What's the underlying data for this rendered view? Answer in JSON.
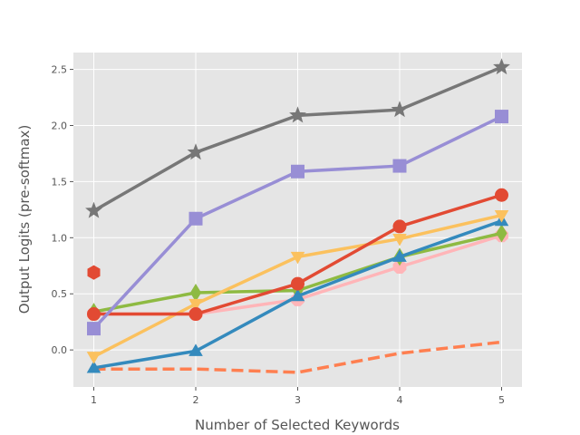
{
  "chart_data": {
    "type": "line",
    "style": "ggplot",
    "title": "",
    "xlabel": "Number of Selected Keywords",
    "ylabel": "Output Logits (pre-softmax)",
    "xlim": [
      0.8,
      5.2
    ],
    "ylim": [
      -0.33,
      2.65
    ],
    "x_ticks": [
      1,
      2,
      3,
      4,
      5
    ],
    "y_ticks": [
      0.0,
      0.5,
      1.0,
      1.5,
      2.0,
      2.5
    ],
    "y_tick_labels": [
      "0.0",
      "0.5",
      "1.0",
      "1.5",
      "2.0",
      "2.5"
    ],
    "grid": true,
    "legend": "none",
    "x": [
      1,
      2,
      3,
      4,
      5
    ],
    "series": [
      {
        "color": "#777777",
        "marker": "star",
        "line": "solid",
        "values": [
          1.24,
          1.76,
          2.09,
          2.14,
          2.52
        ]
      },
      {
        "color": "#988ED5",
        "marker": "square",
        "line": "solid",
        "values": [
          0.19,
          1.17,
          1.59,
          1.64,
          2.08
        ]
      },
      {
        "color": "#E24A33",
        "marker": "circle",
        "line": "solid",
        "values": [
          0.32,
          0.32,
          0.59,
          1.1,
          1.38
        ]
      },
      {
        "color": "#FBC15E",
        "marker": "triangle-down",
        "line": "solid",
        "values": [
          -0.06,
          0.41,
          0.83,
          0.99,
          1.2
        ]
      },
      {
        "color": "#348ABD",
        "marker": "triangle-up",
        "line": "solid",
        "values": [
          -0.16,
          -0.01,
          0.48,
          0.83,
          1.15
        ]
      },
      {
        "color": "#8EBA42",
        "marker": "thin-diamond",
        "line": "solid",
        "values": [
          0.34,
          0.51,
          0.53,
          0.83,
          1.04
        ]
      },
      {
        "color": "#FFB5B8",
        "marker": "octagon",
        "line": "solid",
        "values": [
          0.32,
          0.32,
          0.45,
          0.74,
          1.02
        ]
      },
      {
        "color": "#FF7F50",
        "marker": "none",
        "line": "dashed",
        "values": [
          -0.17,
          -0.17,
          -0.2,
          -0.03,
          0.07
        ]
      },
      {
        "color": "#E24A33",
        "marker": "hexagon",
        "line": "none",
        "values": [
          0.69,
          null,
          null,
          null,
          null
        ]
      }
    ]
  }
}
